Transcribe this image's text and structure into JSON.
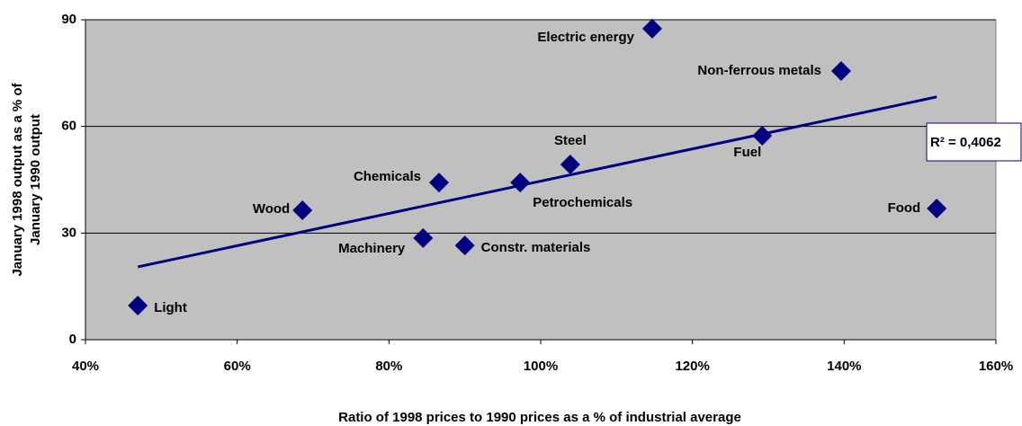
{
  "chart_data": {
    "type": "scatter",
    "xlabel": "Ratio of 1998 prices to 1990 prices  as a % of industrial average",
    "ylabel": [
      "January 1998 output as a % of",
      "January 1990 output"
    ],
    "categories": [
      "Light",
      "Wood",
      "Machinery",
      "Chemicals",
      "Constr. materials",
      "Petrochemicals",
      "Steel",
      "Electric energy",
      "Fuel",
      "Non-ferrous metals",
      "Food"
    ],
    "x": [
      46.9,
      68.6,
      84.5,
      86.6,
      90.0,
      97.3,
      103.9,
      114.7,
      129.2,
      139.6,
      152.2
    ],
    "values": [
      9.6,
      36.4,
      28.6,
      44.2,
      26.5,
      44.2,
      49.3,
      87.5,
      57.4,
      75.6,
      36.9
    ],
    "color": "#000080",
    "trendline": {
      "x": [
        46.9,
        152.2
      ],
      "values": [
        20.5,
        68.3
      ],
      "color": "#000080",
      "label": "R² = 0,4062"
    },
    "xlim": [
      40,
      160
    ],
    "xticks": [
      {
        "value": 40,
        "label": "40%"
      },
      {
        "value": 60,
        "label": "60%"
      },
      {
        "value": 80,
        "label": "80%"
      },
      {
        "value": 100,
        "label": "100%"
      },
      {
        "value": 120,
        "label": "120%"
      },
      {
        "value": 140,
        "label": "140%"
      },
      {
        "value": 160,
        "label": "160%"
      }
    ],
    "ylim": [
      0,
      90
    ],
    "yticks": [
      0,
      30,
      60,
      90
    ],
    "grid": true
  }
}
